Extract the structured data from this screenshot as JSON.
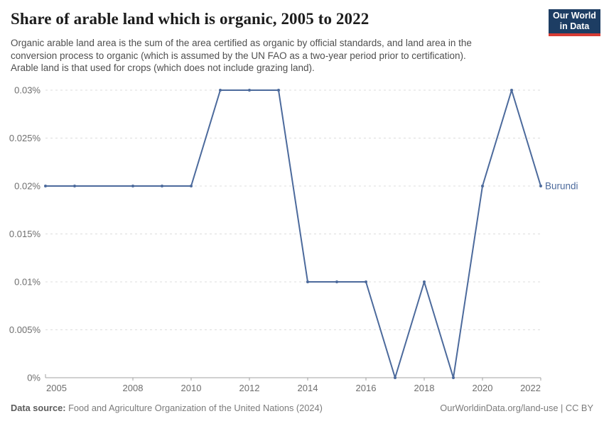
{
  "header": {
    "title": "Share of arable land which is organic, 2005 to 2022",
    "subtitle_lines": [
      "Organic arable land area is the sum of the area certified as organic by official standards, and land area in the",
      "conversion process to organic (which is assumed by the UN FAO as a two-year period prior to certification).",
      "Arable land is that used for crops (which does not include grazing land)."
    ],
    "logo": {
      "line1": "Our World",
      "line2": "in Data",
      "bg_color": "#1d3d63",
      "accent_color": "#d73c34"
    }
  },
  "chart_data": {
    "type": "line",
    "title": "Share of arable land which is organic, 2005 to 2022",
    "xlabel": "",
    "ylabel": "",
    "unit": "%",
    "xlim": [
      2005,
      2022
    ],
    "ylim": [
      0,
      0.03
    ],
    "xtick_values": [
      2005,
      2008,
      2010,
      2012,
      2014,
      2016,
      2018,
      2020,
      2022
    ],
    "xtick_labels": [
      "2005",
      "2008",
      "2010",
      "2012",
      "2014",
      "2016",
      "2018",
      "2020",
      "2022"
    ],
    "ytick_values": [
      0,
      0.005,
      0.01,
      0.015,
      0.02,
      0.025,
      0.03
    ],
    "ytick_labels": [
      "0%",
      "0.005%",
      "0.01%",
      "0.015%",
      "0.02%",
      "0.025%",
      "0.03%"
    ],
    "grid": "horizontal-dashed",
    "legend": "end-of-line-label",
    "series": [
      {
        "name": "Burundi",
        "color": "#4C6A9C",
        "x": [
          2005,
          2006,
          2008,
          2009,
          2010,
          2011,
          2012,
          2013,
          2014,
          2015,
          2016,
          2017,
          2018,
          2019,
          2020,
          2021,
          2022
        ],
        "y": [
          0.02,
          0.02,
          0.02,
          0.02,
          0.02,
          0.03,
          0.03,
          0.03,
          0.01,
          0.01,
          0.01,
          0,
          0.01,
          0,
          0.02,
          0.03,
          0.02
        ],
        "missing_years": [
          2007
        ]
      }
    ],
    "colors": {
      "grid": "#dcdcdc",
      "axis": "#a0a0a0",
      "tick_text": "#6e6e6e"
    }
  },
  "footer": {
    "source_label": "Data source:",
    "source_value": "Food and Agriculture Organization of the United Nations (2024)",
    "link_text": "OurWorldinData.org/land-use | CC BY"
  }
}
